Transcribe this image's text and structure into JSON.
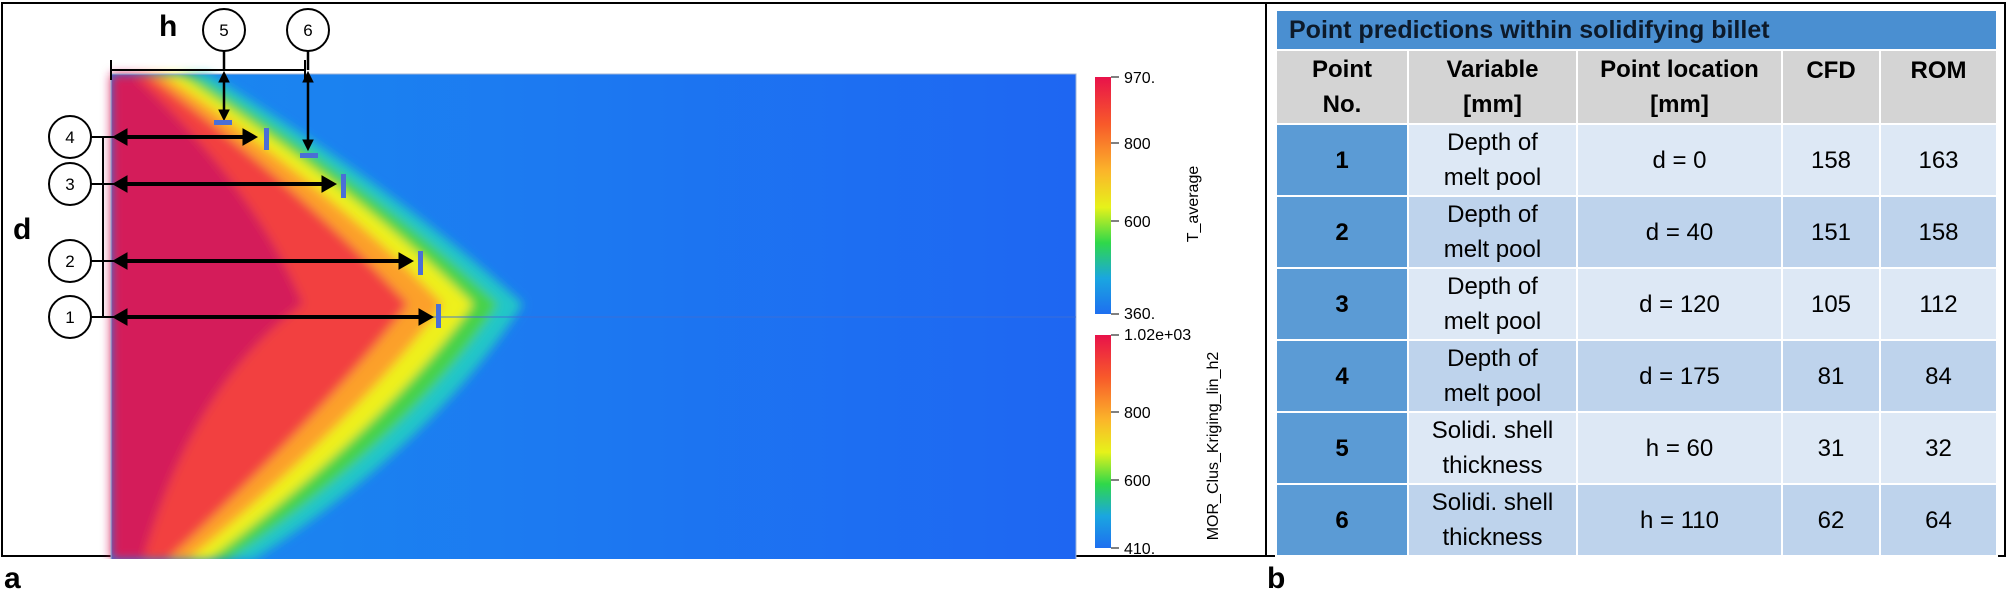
{
  "panel_a": {
    "letter": "a",
    "label_h": "h",
    "label_d": "d",
    "markers": [
      "1",
      "2",
      "3",
      "4",
      "5",
      "6"
    ],
    "colorbar_top": {
      "title": "T_average",
      "ticks": [
        "970.",
        "800",
        "600",
        "360."
      ],
      "tick_values": [
        970,
        800,
        600,
        360
      ],
      "range": [
        360,
        970
      ]
    },
    "colorbar_bottom": {
      "title": "MOR_Clus_Kriging_lin_h2",
      "ticks": [
        "1.02e+03",
        "800",
        "600",
        "410."
      ],
      "tick_values": [
        1020,
        800,
        600,
        410
      ],
      "range": [
        410,
        1020
      ]
    },
    "colors": {
      "cold": "#1e7bf0",
      "warm_start": "#c8146e"
    }
  },
  "panel_b": {
    "letter": "b",
    "title": "Point predictions within solidifying billet",
    "headers": [
      [
        "Point",
        "No."
      ],
      [
        "Variable",
        "[mm]"
      ],
      [
        "Point location",
        "[mm]"
      ],
      [
        "CFD"
      ],
      [
        "ROM"
      ]
    ],
    "rows": [
      {
        "no": "1",
        "var1": "Depth of",
        "var2": "melt pool",
        "loc": "d = 0",
        "cfd": "158",
        "rom": "163"
      },
      {
        "no": "2",
        "var1": "Depth of",
        "var2": "melt pool",
        "loc": "d = 40",
        "cfd": "151",
        "rom": "158"
      },
      {
        "no": "3",
        "var1": "Depth of",
        "var2": "melt pool",
        "loc": "d = 120",
        "cfd": "105",
        "rom": "112"
      },
      {
        "no": "4",
        "var1": "Depth of",
        "var2": "melt pool",
        "loc": "d = 175",
        "cfd": "81",
        "rom": "84"
      },
      {
        "no": "5",
        "var1": "Solidi. shell",
        "var2": "thickness",
        "loc": "h = 60",
        "cfd": "31",
        "rom": "32"
      },
      {
        "no": "6",
        "var1": "Solidi. shell",
        "var2": "thickness",
        "loc": "h = 110",
        "cfd": "62",
        "rom": "64"
      }
    ],
    "colors": {
      "title_bg": "#4a8fd1",
      "header_bg": "#d4d4d4",
      "num_bg": "#5b9bd5",
      "row_light": "#dde8f5",
      "row_dark": "#bed3ec"
    }
  }
}
